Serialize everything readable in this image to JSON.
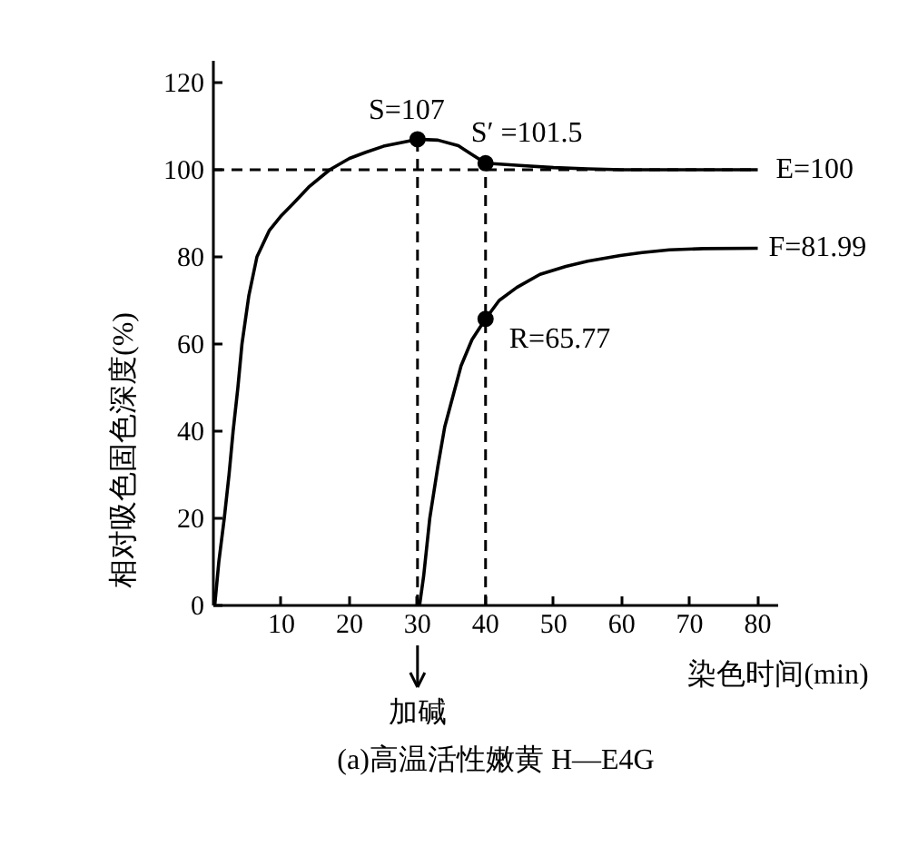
{
  "chart_data": {
    "type": "line",
    "title": "(a)高温活性嫩黄 H—E4G",
    "xlabel": "染色时间(min)",
    "ylabel": "相对吸色固色深度(%)",
    "xlim": [
      0,
      83
    ],
    "ylim": [
      0,
      125
    ],
    "xticks": [
      10,
      20,
      30,
      40,
      50,
      60,
      70,
      80
    ],
    "yticks": [
      0,
      20,
      40,
      60,
      80,
      100,
      120
    ],
    "line_style": "solid",
    "series": [
      {
        "color": "#000000",
        "x": [
          0.2,
          0.8,
          1.6,
          2.3,
          2.9,
          3.6,
          4.2,
          5.2,
          6.4,
          8.2,
          10,
          11.7,
          14,
          17.1,
          20,
          22.4,
          25,
          30,
          33,
          36,
          38,
          40,
          45,
          50,
          55,
          60,
          70,
          80
        ],
        "values": [
          0,
          10,
          20,
          30,
          40,
          50,
          60,
          71,
          80,
          86,
          89.5,
          92.2,
          96,
          100,
          102.6,
          104,
          105.4,
          107,
          106.8,
          105.5,
          103.5,
          101.5,
          101,
          100.5,
          100.2,
          100,
          100,
          100
        ]
      },
      {
        "color": "#000000",
        "x": [
          30.3,
          30.9,
          31.8,
          33,
          34,
          36.4,
          38,
          40,
          42,
          44.6,
          48,
          51.8,
          55,
          59.8,
          63,
          67,
          72,
          80
        ],
        "values": [
          0,
          6.7,
          20,
          32,
          41,
          55,
          61,
          65.77,
          70,
          73,
          76,
          77.8,
          79,
          80.3,
          81,
          81.6,
          81.9,
          81.99
        ]
      },
      {
        "type": "scatter",
        "color": "#000000",
        "marker": "circle",
        "x": [
          30,
          40,
          40
        ],
        "values": [
          107,
          101.5,
          65.77
        ]
      }
    ],
    "ref_lines": [
      {
        "axis": "y",
        "value": 100,
        "line_style": "dashed",
        "color": "#000000"
      },
      {
        "axis": "x",
        "value": 30,
        "line_style": "dashed",
        "color": "#000000"
      },
      {
        "axis": "x",
        "value": 40,
        "line_style": "dashed",
        "color": "#000000"
      }
    ],
    "annotations": [
      {
        "text": "S=107",
        "x": 30,
        "y": 107
      },
      {
        "text": "S′ =101.5",
        "x": 40,
        "y": 101.5
      },
      {
        "text": "E=100",
        "x": 80,
        "y": 100
      },
      {
        "text": "F=81.99",
        "x": 80,
        "y": 81.99
      },
      {
        "text": "R=65.77",
        "x": 40,
        "y": 65.77
      },
      {
        "text": "加碱",
        "x": 30
      }
    ]
  }
}
